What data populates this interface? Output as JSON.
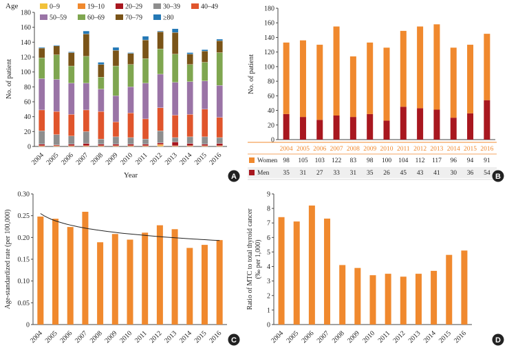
{
  "years": [
    "2004",
    "2005",
    "2006",
    "2007",
    "2008",
    "2009",
    "2010",
    "2011",
    "2012",
    "2013",
    "2014",
    "2015",
    "2016"
  ],
  "colors": {
    "orange": "#F0892E",
    "darkred": "#A8171F",
    "badge": "#222222",
    "axis": "#444444",
    "table_line": "#F0892E"
  },
  "chart_data": [
    {
      "panel": "A",
      "type": "bar",
      "stacked": true,
      "ylabel": "No. of patient",
      "xlabel": "Year",
      "ylim": [
        0,
        180
      ],
      "yticks": [
        0,
        20,
        40,
        60,
        80,
        100,
        120,
        140,
        160,
        180
      ],
      "legend_title": "Age",
      "legend": [
        {
          "label": "0–9",
          "color": "#F2C23A"
        },
        {
          "label": "19–10",
          "color": "#F0892E"
        },
        {
          "label": "20–29",
          "color": "#A8171F"
        },
        {
          "label": "30–39",
          "color": "#8E8E8E"
        },
        {
          "label": "40–49",
          "color": "#E0552C"
        },
        {
          "label": "50–59",
          "color": "#9A74A6"
        },
        {
          "label": "60–69",
          "color": "#7FA650"
        },
        {
          "label": "70–79",
          "color": "#7A5418"
        },
        {
          "label": "≥80",
          "color": "#2478B5"
        }
      ],
      "series": [
        {
          "name": "0–9",
          "values": [
            0,
            0,
            0,
            0,
            0,
            0,
            0,
            0,
            1,
            0,
            0,
            0,
            0
          ]
        },
        {
          "name": "19–10",
          "values": [
            1,
            1,
            1,
            1,
            1,
            1,
            1,
            1,
            2,
            1,
            1,
            1,
            1
          ]
        },
        {
          "name": "20–29",
          "values": [
            2,
            1,
            2,
            3,
            2,
            2,
            2,
            2,
            2,
            5,
            3,
            2,
            3
          ]
        },
        {
          "name": "30–39",
          "values": [
            18,
            14,
            11,
            16,
            7,
            10,
            9,
            7,
            16,
            6,
            9,
            10,
            8
          ]
        },
        {
          "name": "40–49",
          "values": [
            28,
            31,
            29,
            29,
            37,
            20,
            33,
            27,
            31,
            30,
            30,
            37,
            27
          ]
        },
        {
          "name": "50–59",
          "values": [
            42,
            43,
            42,
            36,
            30,
            35,
            35,
            48,
            45,
            44,
            44,
            38,
            43
          ]
        },
        {
          "name": "60–69",
          "values": [
            28,
            33,
            23,
            36,
            16,
            40,
            30,
            33,
            34,
            38,
            23,
            25,
            44
          ]
        },
        {
          "name": "70–79",
          "values": [
            13,
            12,
            18,
            30,
            17,
            21,
            15,
            25,
            23,
            29,
            14,
            15,
            16
          ]
        },
        {
          "name": "≥80",
          "values": [
            1,
            1,
            1,
            4,
            3,
            4,
            1,
            5,
            1,
            5,
            2,
            2,
            2
          ]
        }
      ]
    },
    {
      "panel": "B",
      "type": "bar",
      "stacked": true,
      "ylabel": "No. of patient",
      "ylim": [
        0,
        180
      ],
      "yticks": [
        0,
        20,
        40,
        60,
        80,
        100,
        120,
        140,
        160,
        180
      ],
      "series": [
        {
          "name": "Men",
          "values": [
            35,
            31,
            27,
            33,
            31,
            35,
            26,
            45,
            43,
            41,
            30,
            36,
            54
          ]
        },
        {
          "name": "Women",
          "values": [
            98,
            105,
            103,
            122,
            83,
            98,
            100,
            104,
            112,
            117,
            96,
            94,
            91
          ]
        }
      ],
      "table": {
        "rows": [
          {
            "label": "Women",
            "values": [
              "98",
              "105",
              "103",
              "122",
              "83",
              "98",
              "100",
              "104",
              "112",
              "117",
              "96",
              "94",
              "91"
            ]
          },
          {
            "label": "Men",
            "values": [
              "35",
              "31",
              "27",
              "33",
              "31",
              "35",
              "26",
              "45",
              "43",
              "41",
              "30",
              "36",
              "54"
            ]
          }
        ]
      }
    },
    {
      "panel": "C",
      "type": "bar",
      "ylabel": "Age-standardized rate (per 100,000)",
      "ylim": [
        0,
        0.3
      ],
      "yticks": [
        "0",
        "0.05",
        "0.10",
        "0.15",
        "0.20",
        "0.25",
        "0.30"
      ],
      "values": [
        0.248,
        0.243,
        0.224,
        0.259,
        0.189,
        0.208,
        0.195,
        0.211,
        0.228,
        0.219,
        0.176,
        0.183,
        0.194
      ],
      "trendline": {
        "type": "logarithmic",
        "start": 0.255,
        "end": 0.193
      }
    },
    {
      "panel": "D",
      "type": "bar",
      "ylabel": "Ratio of MTC to total thyroid cancer",
      "ylabel2": "(‰ per 1,000)",
      "ylim": [
        0,
        9
      ],
      "yticks": [
        "0",
        "1",
        "2",
        "3",
        "4",
        "5",
        "6",
        "7",
        "8",
        "9"
      ],
      "values": [
        7.4,
        7.1,
        8.2,
        7.3,
        4.1,
        3.9,
        3.4,
        3.5,
        3.3,
        3.5,
        3.7,
        4.8,
        5.1
      ]
    }
  ]
}
